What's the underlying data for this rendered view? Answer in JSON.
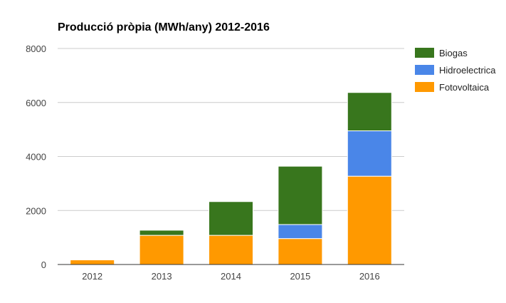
{
  "chart_data": {
    "type": "bar",
    "stacked": true,
    "title": "Producció pròpia (MWh/any) 2012-2016",
    "categories": [
      "2012",
      "2013",
      "2014",
      "2015",
      "2016"
    ],
    "series": [
      {
        "name": "Fotovoltaica",
        "color": "#ff9900",
        "values": [
          170,
          1080,
          1080,
          960,
          3270
        ]
      },
      {
        "name": "Hidroelectrica",
        "color": "#4a86e8",
        "values": [
          0,
          0,
          0,
          520,
          1680
        ]
      },
      {
        "name": "Biogas",
        "color": "#38761d",
        "values": [
          0,
          190,
          1250,
          2160,
          1420
        ]
      }
    ],
    "legend_order": [
      "Biogas",
      "Hidroelectrica",
      "Fotovoltaica"
    ],
    "ylim": [
      0,
      8000
    ],
    "yticks": [
      "0",
      "2000",
      "4000",
      "6000",
      "8000"
    ],
    "grid": true,
    "legend_position": "right"
  }
}
